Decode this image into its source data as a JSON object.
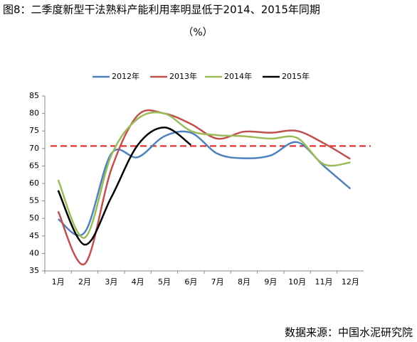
{
  "chart_data": {
    "type": "line",
    "title": "图8：二季度新型干法熟料产能利用率明显低于2014、2015年同期",
    "subtitle": "（%）",
    "source": "数据来源：中国水泥研究院",
    "categories": [
      "1月",
      "2月",
      "3月",
      "4月",
      "5月",
      "6月",
      "7月",
      "8月",
      "9月",
      "10月",
      "11月",
      "12月"
    ],
    "series": [
      {
        "name": "2012年",
        "color": "#4f81bd",
        "values": [
          49.8,
          46,
          68.5,
          67.5,
          73.5,
          74.5,
          68.5,
          67.2,
          68,
          71.8,
          65,
          58.5
        ]
      },
      {
        "name": "2013年",
        "color": "#c0504d",
        "values": [
          52,
          37,
          64,
          79.5,
          80,
          77,
          72.8,
          74.8,
          74.5,
          75,
          71.5,
          67
        ]
      },
      {
        "name": "2014年",
        "color": "#9bbb59",
        "values": [
          61,
          44.5,
          68,
          78.5,
          80,
          75,
          73.8,
          73.5,
          72.8,
          73,
          65.5,
          66
        ]
      },
      {
        "name": "2015年",
        "color": "#000000",
        "values": [
          58,
          42.5,
          56,
          71,
          76,
          71,
          null,
          null,
          null,
          null,
          null,
          null
        ]
      }
    ],
    "reference_line": {
      "value": 70.7,
      "color": "#e02020",
      "dashed": true
    },
    "ylim": [
      35,
      85
    ],
    "yticks": [
      35,
      40,
      45,
      50,
      55,
      60,
      65,
      70,
      75,
      80,
      85
    ],
    "grid": false,
    "legend": "top",
    "smooth": true
  }
}
